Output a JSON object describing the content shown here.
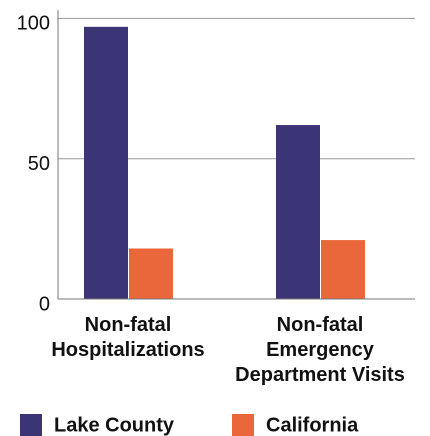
{
  "chart_data": {
    "type": "bar",
    "categories": [
      "Non-fatal\nHospitalizations",
      "Non-fatal\nEmergency\nDepartment Visits"
    ],
    "series": [
      {
        "name": "Lake County",
        "color": "#3b3576",
        "values": [
          97,
          62
        ]
      },
      {
        "name": "California",
        "color": "#e9673b",
        "values": [
          18,
          21
        ]
      }
    ],
    "ylim": [
      0,
      103
    ],
    "yticks": [
      0,
      50,
      100
    ],
    "grid": true
  }
}
